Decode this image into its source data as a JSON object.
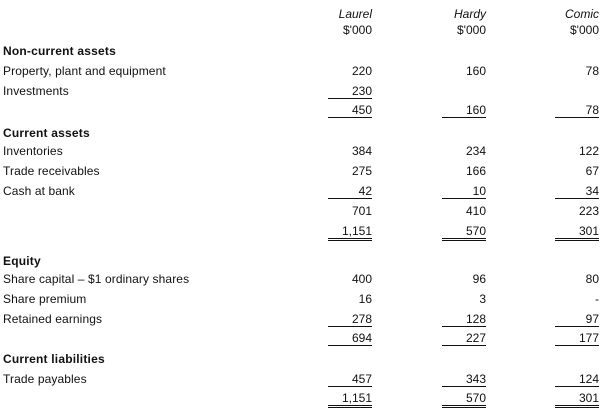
{
  "columns": [
    {
      "name": "Laurel",
      "unit": "$'000"
    },
    {
      "name": "Hardy",
      "unit": "$'000"
    },
    {
      "name": "Comic",
      "unit": "$'000"
    }
  ],
  "rows": [
    {
      "label": "Non-current assets",
      "heading": true,
      "values": [
        "",
        "",
        ""
      ]
    },
    {
      "label": "Property, plant and equipment",
      "values": [
        "220",
        "160",
        "78"
      ]
    },
    {
      "label": "Investments",
      "values": [
        "230",
        "",
        ""
      ],
      "border_bottom": true
    },
    {
      "label": "",
      "values": [
        "450",
        "160",
        "78"
      ],
      "border_bottom": true
    },
    {
      "label": "Current assets",
      "heading": true,
      "values": [
        "",
        "",
        ""
      ]
    },
    {
      "label": "Inventories",
      "values": [
        "384",
        "234",
        "122"
      ]
    },
    {
      "label": "Trade receivables",
      "values": [
        "275",
        "166",
        "67"
      ]
    },
    {
      "label": "Cash at bank",
      "values": [
        "42",
        "10",
        "34"
      ],
      "border_bottom": true
    },
    {
      "label": "",
      "values": [
        "701",
        "410",
        "223"
      ]
    },
    {
      "label": "",
      "values": [
        "1,151",
        "570",
        "301"
      ],
      "double_top": true
    },
    {
      "label": "Equity",
      "heading": true,
      "values": [
        "",
        "",
        ""
      ]
    },
    {
      "label": "Share capital – $1 ordinary shares",
      "values": [
        "400",
        "96",
        "80"
      ]
    },
    {
      "label": "Share premium",
      "values": [
        "16",
        "3",
        "-"
      ]
    },
    {
      "label": "Retained earnings",
      "values": [
        "278",
        "128",
        "97"
      ],
      "border_bottom": true
    },
    {
      "label": "",
      "values": [
        "694",
        "227",
        "177"
      ],
      "border_bottom": true
    },
    {
      "label": "Current liabilities",
      "heading": true,
      "values": [
        "",
        "",
        ""
      ]
    },
    {
      "label": "Trade payables",
      "values": [
        "457",
        "343",
        "124"
      ],
      "border_bottom": true
    },
    {
      "label": "",
      "values": [
        "1,151",
        "570",
        "301"
      ],
      "double_bottom": true
    }
  ]
}
